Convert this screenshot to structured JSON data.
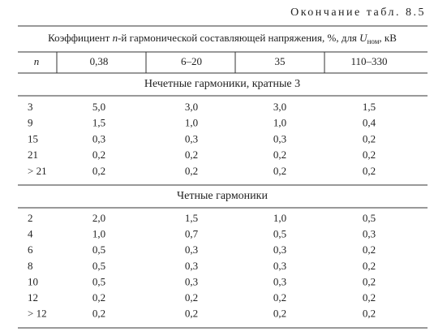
{
  "caption": "Окончание табл. 8.5",
  "header": {
    "prefix": "Коэффициент",
    "n": "n",
    "middle": "-й гармонической составляющей напряжения, %, для",
    "u": "U",
    "sub": "ном",
    "suffix": ", кВ"
  },
  "columns": [
    "n",
    "0,38",
    "6–20",
    "35",
    "110–330"
  ],
  "sections": [
    {
      "title": "Нечетные гармоники, кратные 3",
      "rows": [
        [
          "3",
          "5,0",
          "3,0",
          "3,0",
          "1,5"
        ],
        [
          "9",
          "1,5",
          "1,0",
          "1,0",
          "0,4"
        ],
        [
          "15",
          "0,3",
          "0,3",
          "0,3",
          "0,2"
        ],
        [
          "21",
          "0,2",
          "0,2",
          "0,2",
          "0,2"
        ],
        [
          "> 21",
          "0,2",
          "0,2",
          "0,2",
          "0,2"
        ]
      ]
    },
    {
      "title": "Четные гармоники",
      "rows": [
        [
          "2",
          "2,0",
          "1,5",
          "1,0",
          "0,5"
        ],
        [
          "4",
          "1,0",
          "0,7",
          "0,5",
          "0,3"
        ],
        [
          "6",
          "0,5",
          "0,3",
          "0,3",
          "0,2"
        ],
        [
          "8",
          "0,5",
          "0,3",
          "0,3",
          "0,2"
        ],
        [
          "10",
          "0,5",
          "0,3",
          "0,3",
          "0,2"
        ],
        [
          "12",
          "0,2",
          "0,2",
          "0,2",
          "0,2"
        ],
        [
          "> 12",
          "0,2",
          "0,2",
          "0,2",
          "0,2"
        ]
      ]
    }
  ]
}
